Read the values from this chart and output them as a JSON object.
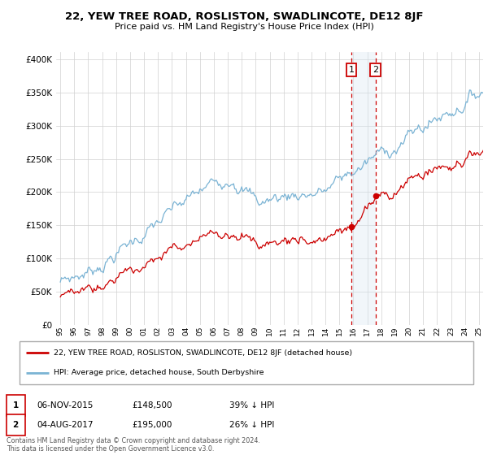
{
  "title": "22, YEW TREE ROAD, ROSLISTON, SWADLINCOTE, DE12 8JF",
  "subtitle": "Price paid vs. HM Land Registry's House Price Index (HPI)",
  "hpi_label": "HPI: Average price, detached house, South Derbyshire",
  "property_label": "22, YEW TREE ROAD, ROSLISTON, SWADLINCOTE, DE12 8JF (detached house)",
  "footer": "Contains HM Land Registry data © Crown copyright and database right 2024.\nThis data is licensed under the Open Government Licence v3.0.",
  "purchase1_date": 2015.85,
  "purchase1_price": 148500,
  "purchase2_date": 2017.59,
  "purchase2_price": 195000,
  "hpi_color": "#7ab3d4",
  "property_color": "#cc0000",
  "vline_color": "#cc0000",
  "highlight_color": "#d8e8f3",
  "ylim": [
    0,
    410000
  ],
  "yticks": [
    0,
    50000,
    100000,
    150000,
    200000,
    250000,
    300000,
    350000,
    400000
  ],
  "xlim_start": 1994.7,
  "xlim_end": 2025.3
}
